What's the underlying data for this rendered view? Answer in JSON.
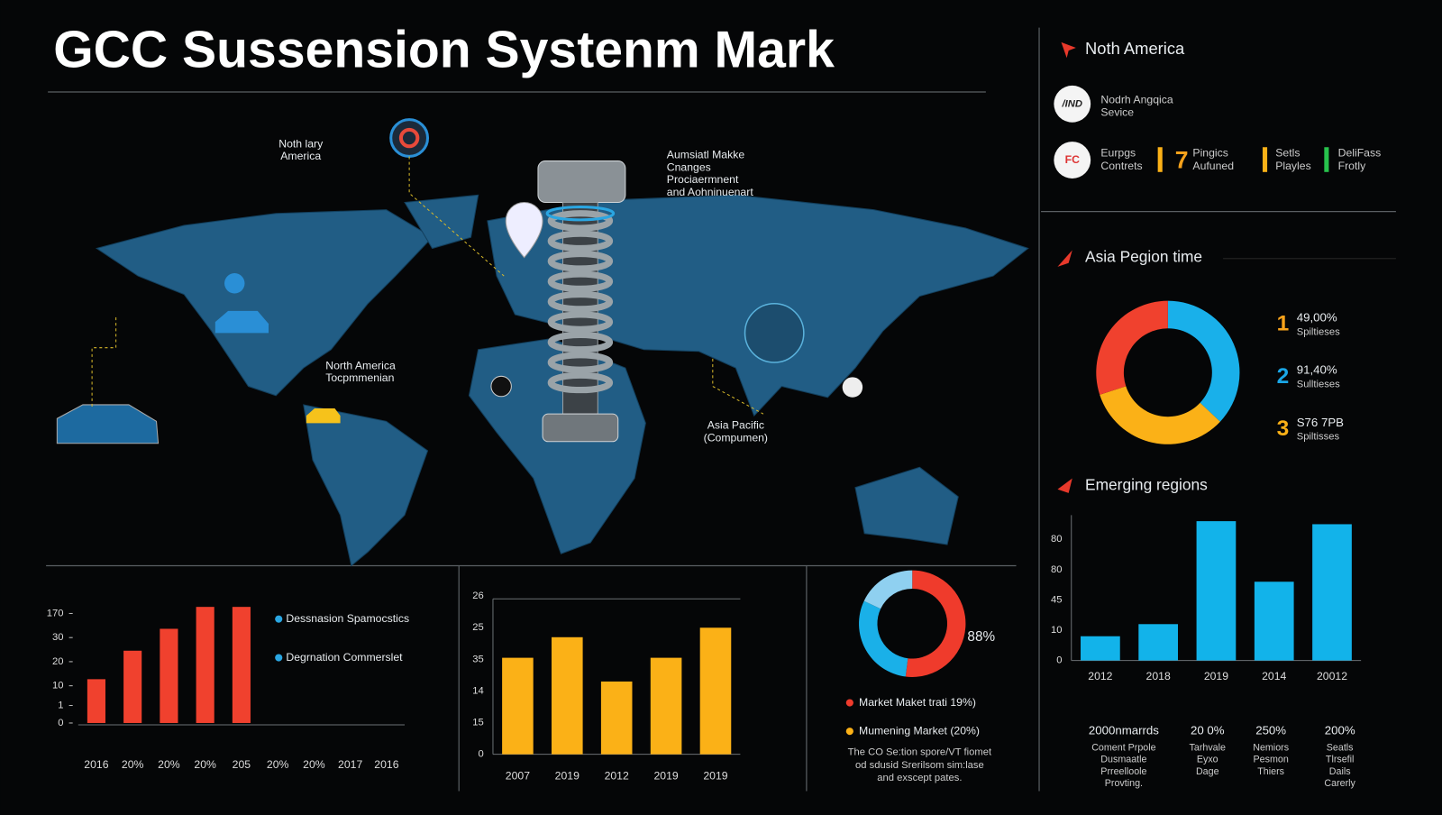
{
  "header": {
    "title": "GCC Sussension Systenm Mark"
  },
  "map": {
    "labels": [
      [
        "Noth lary",
        "America"
      ],
      [
        "Aumsiatl Makke",
        "Cnanges",
        "Prociaermnent",
        "and Aohninuenart"
      ],
      [
        "North America",
        "Tocpmmenian"
      ],
      [
        "Asia Pacific",
        "(Compumen)"
      ]
    ]
  },
  "north_america": {
    "title": "Noth America",
    "service": {
      "logo": "/IND",
      "lines": [
        "Nodrh Angqica",
        "Sevice"
      ]
    },
    "row": {
      "logo": "FC",
      "europe": [
        "Eurpgs",
        "Contrets"
      ],
      "number": 7,
      "plugins": [
        "Pingics",
        "Aufuned"
      ],
      "setls": [
        "Setls",
        "Playles"
      ],
      "delifass": [
        "DeliFass",
        "Frotly"
      ]
    }
  },
  "stats": [
    {
      "value": "2000nmarrds",
      "lines": [
        "Coment Prpole",
        "Dusmaatle",
        "Prreelloole",
        "Provting."
      ]
    },
    {
      "value": "20 0%",
      "lines": [
        "Tarhvale",
        "Eyxo",
        "Dage"
      ]
    },
    {
      "value": "250%",
      "lines": [
        "Nemiors",
        "Pesmon",
        "Thiers"
      ]
    },
    {
      "value": "200%",
      "lines": [
        "Seatls",
        "Tlrsefil",
        "Dails",
        "Carerly"
      ]
    }
  ],
  "chart_data": [
    {
      "type": "bar",
      "categories": [
        "2016",
        "20%",
        "20%",
        "20%",
        "205",
        "20%",
        "20%",
        "2017",
        "2016"
      ],
      "values": [
        20,
        33,
        43,
        53,
        53,
        null,
        null,
        null,
        null
      ],
      "color": "#f0412e",
      "ylim": [
        0,
        55
      ],
      "yticks": [
        0,
        {
          "value": 8,
          "label": "1"
        },
        {
          "value": 17,
          "label": "10"
        },
        {
          "value": 28,
          "label": "20"
        },
        {
          "value": 39,
          "label": "30"
        },
        {
          "value": 50,
          "label": "170"
        }
      ],
      "grid": false,
      "legend": [
        "Dessnasion Spamocstics",
        "Degrnation Commerslet"
      ],
      "legend_color": "#2aa6e2"
    },
    {
      "type": "bar",
      "categories": [
        "2007",
        "2019",
        "2012",
        "2019",
        "2019"
      ],
      "values": [
        30.5,
        37,
        23,
        30.5,
        40
      ],
      "color": "#fbb117",
      "ylim": [
        0,
        50
      ],
      "yticks": [
        0,
        {
          "value": 10,
          "label": "15"
        },
        {
          "value": 20,
          "label": "14"
        },
        {
          "value": 30,
          "label": "35"
        },
        {
          "value": 40,
          "label": "25"
        },
        {
          "value": 50,
          "label": "26"
        }
      ],
      "grid": false
    },
    {
      "type": "donut",
      "values": [
        52,
        30,
        18
      ],
      "colors": [
        "#ef3b2c",
        "#1ab0e8",
        "#8fd0f0"
      ],
      "annotation": "88%",
      "legend": [
        "Market Maket trati 19%)",
        "Mumening Market (20%)"
      ],
      "legend_colors": [
        "#ef3b2c",
        "#fbb117"
      ],
      "description": [
        "The CO Se:tion spore/VT fiomet",
        "od sdusid Srerilsom sim:lase",
        "and exscept pates."
      ]
    },
    {
      "type": "donut",
      "title": "Asia Pegion time",
      "values": [
        37,
        33,
        30
      ],
      "colors": [
        "#19b0ea",
        "#fbb117",
        "#f0412e"
      ],
      "legend": [
        {
          "rank": 1,
          "value": "49,00%",
          "label": "Spiltieses"
        },
        {
          "rank": 2,
          "value": "91,40%",
          "label": "Sulltieses"
        },
        {
          "rank": 3,
          "value": "S76 7PB",
          "label": "Spiltisses"
        }
      ],
      "rank_colors": [
        "#f7a21b",
        "#1aa6e6",
        "#fbb117"
      ]
    },
    {
      "type": "bar",
      "title": "Emerging regions",
      "categories": [
        "2012",
        "2018",
        "2019",
        "2014",
        "20012"
      ],
      "values": [
        8,
        12,
        46,
        26,
        45
      ],
      "color": "#12b3ea",
      "ylim": [
        0,
        48
      ],
      "yticks": [
        0,
        10,
        {
          "value": 20,
          "label": "45"
        },
        {
          "value": 30,
          "label": "80"
        },
        {
          "value": 40,
          "label": "80"
        }
      ],
      "grid": false
    }
  ]
}
